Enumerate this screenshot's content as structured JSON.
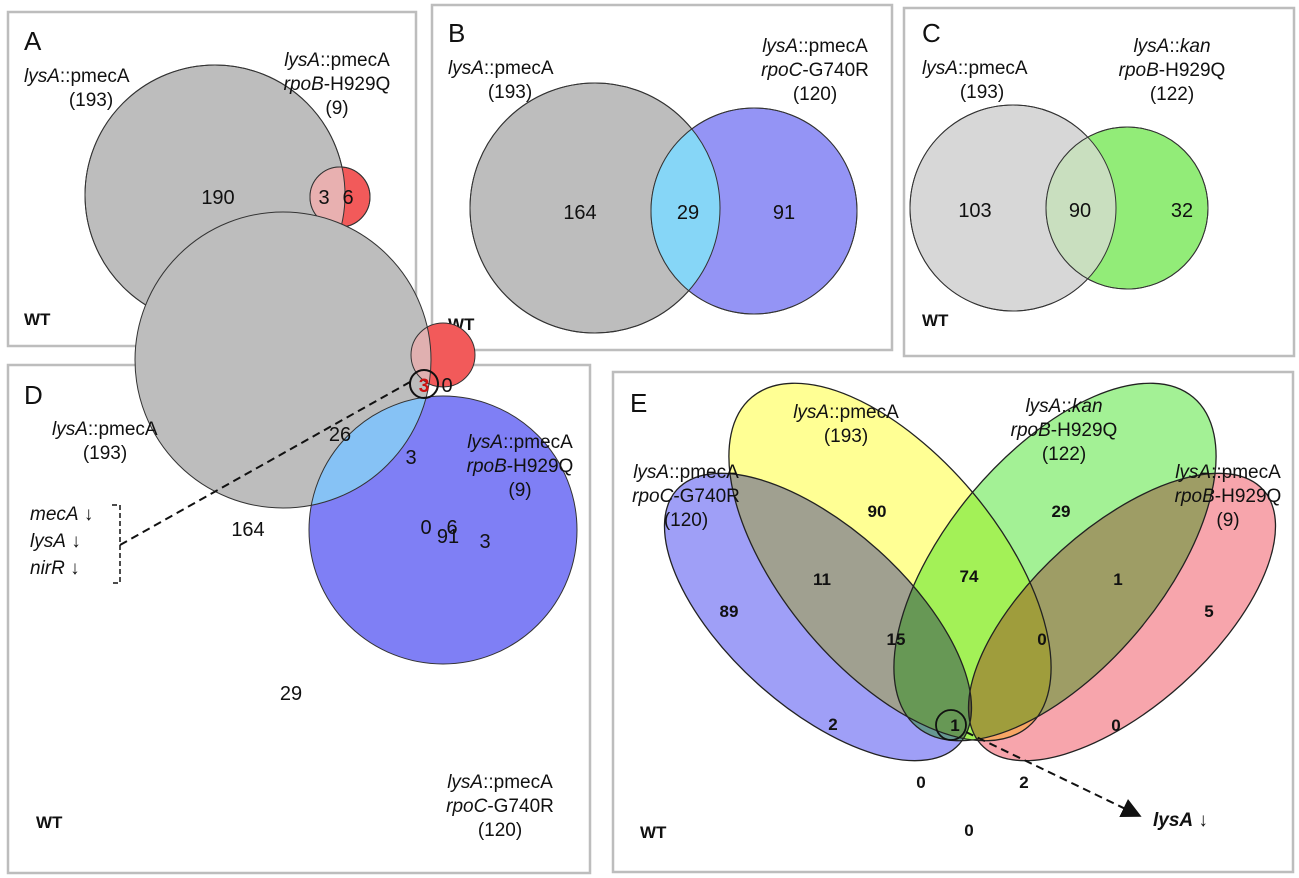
{
  "colors": {
    "gray": "#bdbdbd",
    "red": "#f25a5a",
    "blue": "#7f7ff5",
    "cyan": "#86d6f7",
    "lightgray": "#d7d7d7",
    "green": "#92ec78",
    "yellow": "#ffff66",
    "label_red": "#b22222",
    "label_blue": "#3c6fd6",
    "label_green": "#5a8a2a",
    "text": "#111111"
  },
  "panel_a": {
    "letter": "A",
    "set1": {
      "italic": "lysA",
      "rest": "::pmecA",
      "count": "(193)"
    },
    "set2": {
      "italic1": "lysA",
      "rest1": "::pmecA",
      "italic2": "rpoB",
      "rest2": "-H929Q",
      "count": "(9)"
    },
    "only1": "190",
    "both": "3",
    "only2": "6",
    "wt": "WT"
  },
  "panel_b": {
    "letter": "B",
    "set1": {
      "italic": "lysA",
      "rest": "::pmecA",
      "count": "(193)"
    },
    "set2": {
      "italic1": "lysA",
      "rest1": "::pmecA",
      "italic2": "rpoC",
      "rest2": "-G740R",
      "count": "(120)"
    },
    "only1": "164",
    "both": "29",
    "only2": "91",
    "wt": "WT"
  },
  "panel_c": {
    "letter": "C",
    "set1": {
      "italic": "lysA",
      "rest": "::pmecA",
      "count": "(193)"
    },
    "set2": {
      "italic1": "lysA",
      "rest1": "::",
      "italic1b": "kan",
      "italic2": "rpoB",
      "rest2": "-H929Q",
      "count": "(122)"
    },
    "only1": "103",
    "both": "90",
    "only2": "32",
    "wt": "WT"
  },
  "panel_d": {
    "letter": "D",
    "set1": {
      "italic": "lysA",
      "rest": "::pmecA",
      "count": "(193)"
    },
    "set2": {
      "italic1": "lysA",
      "rest1": "::pmecA",
      "italic2": "rpoB",
      "rest2": "-H929Q",
      "count": "(9)"
    },
    "set3": {
      "italic1": "lysA",
      "rest1": "::pmecA",
      "italic2": "rpoC",
      "rest2": "-G740R",
      "count": "(120)"
    },
    "gray_only": "164",
    "gray_red": "0",
    "red_only": "6",
    "center": "3",
    "red_blue": "0",
    "gray_blue": "26",
    "blue_only": "91",
    "total_gray_red": "3",
    "total_red_blue": "3",
    "total_gray_blue": "29",
    "genes": [
      "mecA",
      "lysA",
      "nirR"
    ],
    "arrow": "↓",
    "wt": "WT"
  },
  "panel_e": {
    "letter": "E",
    "set_blue": {
      "italic1": "lysA",
      "rest1": "::pmecA",
      "italic2": "rpoC",
      "rest2": "-G740R",
      "count": "(120)"
    },
    "set_yellow": {
      "italic": "lysA",
      "rest": "::pmecA",
      "count": "(193)"
    },
    "set_green": {
      "italic1": "lysA",
      "rest1": "::",
      "italic1b": "kan",
      "italic2": "rpoB",
      "rest2": "-H929Q",
      "count": "(122)"
    },
    "set_red": {
      "italic1": "lysA",
      "rest1": "::pmecA",
      "italic2": "rpoB",
      "rest2": "-H929Q",
      "count": "(9)"
    },
    "regions": [
      "89",
      "90",
      "29",
      "5",
      "11",
      "74",
      "1",
      "15",
      "0",
      "2",
      "1",
      "0",
      "0",
      "2",
      "0"
    ],
    "result_gene": "lysA",
    "result_arrow": "↓",
    "wt": "WT"
  }
}
